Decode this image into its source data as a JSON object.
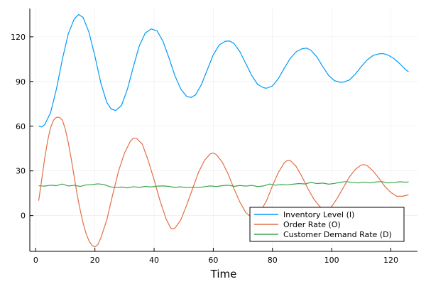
{
  "chart_data": {
    "type": "line",
    "title": "",
    "xlabel": "Time",
    "ylabel": "",
    "xlim": [
      -2,
      129
    ],
    "ylim": [
      -24,
      139
    ],
    "xticks": [
      0,
      20,
      40,
      60,
      80,
      100,
      120
    ],
    "yticks": [
      0,
      30,
      60,
      90,
      120
    ],
    "grid": true,
    "legend_position": "bottom-right",
    "series": [
      {
        "name": "Inventory Level (I)",
        "color": "#009af9",
        "points": [
          [
            1,
            60
          ],
          [
            2,
            59.5
          ],
          [
            3,
            61
          ],
          [
            5,
            69
          ],
          [
            7,
            85
          ],
          [
            9,
            105
          ],
          [
            11,
            122
          ],
          [
            13,
            132
          ],
          [
            14.5,
            135
          ],
          [
            16,
            133
          ],
          [
            18,
            123
          ],
          [
            20,
            107
          ],
          [
            22,
            89
          ],
          [
            24,
            76
          ],
          [
            25.5,
            71.5
          ],
          [
            27,
            70.5
          ],
          [
            29,
            74
          ],
          [
            31,
            85
          ],
          [
            33,
            100
          ],
          [
            35,
            114
          ],
          [
            37,
            122.5
          ],
          [
            39,
            125.3
          ],
          [
            41,
            124
          ],
          [
            43,
            117
          ],
          [
            45,
            106
          ],
          [
            47,
            94
          ],
          [
            49,
            85
          ],
          [
            51,
            80
          ],
          [
            52.5,
            79.3
          ],
          [
            54,
            81
          ],
          [
            56,
            88
          ],
          [
            58,
            98
          ],
          [
            60,
            108
          ],
          [
            62,
            114.5
          ],
          [
            64,
            117
          ],
          [
            65.5,
            117.2
          ],
          [
            67,
            115.5
          ],
          [
            69,
            110
          ],
          [
            71,
            102
          ],
          [
            73,
            94
          ],
          [
            75,
            88
          ],
          [
            77,
            85.8
          ],
          [
            78,
            85.5
          ],
          [
            80,
            87
          ],
          [
            82,
            92
          ],
          [
            84,
            99
          ],
          [
            86,
            105.5
          ],
          [
            88,
            110
          ],
          [
            90,
            112
          ],
          [
            91.5,
            112.4
          ],
          [
            93,
            111
          ],
          [
            95,
            106.5
          ],
          [
            97,
            100
          ],
          [
            99,
            94
          ],
          [
            101,
            90.5
          ],
          [
            103,
            89.5
          ],
          [
            104,
            89.6
          ],
          [
            106,
            91
          ],
          [
            108,
            95
          ],
          [
            110,
            100
          ],
          [
            112,
            104.5
          ],
          [
            114,
            107.5
          ],
          [
            116,
            108.6
          ],
          [
            117.5,
            108.7
          ],
          [
            119,
            107.8
          ],
          [
            121,
            105.5
          ],
          [
            123,
            102
          ],
          [
            125,
            98
          ],
          [
            126,
            96.5
          ]
        ]
      },
      {
        "name": "Order Rate (O)",
        "color": "#e26f46",
        "points": [
          [
            1,
            10
          ],
          [
            2,
            24
          ],
          [
            3,
            38
          ],
          [
            4,
            50
          ],
          [
            5,
            59
          ],
          [
            6,
            64
          ],
          [
            7,
            66
          ],
          [
            8,
            66
          ],
          [
            9,
            64
          ],
          [
            10,
            58
          ],
          [
            11,
            49
          ],
          [
            12,
            38
          ],
          [
            13,
            26
          ],
          [
            14,
            14
          ],
          [
            15,
            4
          ],
          [
            16,
            -5
          ],
          [
            17,
            -12
          ],
          [
            18,
            -17
          ],
          [
            19,
            -20
          ],
          [
            20,
            -21
          ],
          [
            21,
            -19.5
          ],
          [
            22,
            -15
          ],
          [
            24,
            -3
          ],
          [
            26,
            14
          ],
          [
            28,
            30
          ],
          [
            30,
            42
          ],
          [
            32,
            50
          ],
          [
            33,
            52
          ],
          [
            34,
            52
          ],
          [
            36,
            48
          ],
          [
            38,
            37
          ],
          [
            40,
            24
          ],
          [
            42,
            10
          ],
          [
            44,
            -2
          ],
          [
            45.5,
            -8
          ],
          [
            46,
            -9
          ],
          [
            47,
            -8.5
          ],
          [
            49,
            -3
          ],
          [
            51,
            7
          ],
          [
            53,
            18
          ],
          [
            55,
            29
          ],
          [
            57,
            37
          ],
          [
            59,
            41.5
          ],
          [
            60,
            42
          ],
          [
            61,
            41
          ],
          [
            63,
            36
          ],
          [
            65,
            28
          ],
          [
            67,
            18
          ],
          [
            69,
            9
          ],
          [
            71,
            2
          ],
          [
            72.5,
            -0.5
          ],
          [
            73,
            -1
          ],
          [
            74,
            -0.5
          ],
          [
            76,
            3
          ],
          [
            78,
            10
          ],
          [
            80,
            20
          ],
          [
            82,
            29
          ],
          [
            84,
            35.5
          ],
          [
            85,
            37
          ],
          [
            86,
            37
          ],
          [
            88,
            33
          ],
          [
            90,
            26
          ],
          [
            92,
            18
          ],
          [
            94,
            11
          ],
          [
            96,
            6
          ],
          [
            97.5,
            4.5
          ],
          [
            98.5,
            4.3
          ],
          [
            100,
            6
          ],
          [
            102,
            12
          ],
          [
            104,
            19
          ],
          [
            106,
            26
          ],
          [
            108,
            31
          ],
          [
            110,
            34
          ],
          [
            111,
            34.2
          ],
          [
            112,
            33.5
          ],
          [
            114,
            30
          ],
          [
            116,
            25
          ],
          [
            118,
            19.5
          ],
          [
            120,
            15.5
          ],
          [
            122,
            13
          ],
          [
            124,
            13
          ],
          [
            126,
            14
          ]
        ]
      },
      {
        "name": "Customer Demand Rate (D)",
        "color": "#3da44d",
        "points": [
          [
            1,
            20
          ],
          [
            3,
            19.8
          ],
          [
            5,
            20.4
          ],
          [
            7,
            20.1
          ],
          [
            9,
            21.2
          ],
          [
            11,
            19.9
          ],
          [
            13,
            20.3
          ],
          [
            15,
            19.6
          ],
          [
            17,
            20.6
          ],
          [
            19,
            20.8
          ],
          [
            21,
            21.3
          ],
          [
            23,
            20.9
          ],
          [
            25,
            19.4
          ],
          [
            27,
            18.8
          ],
          [
            29,
            19.2
          ],
          [
            31,
            18.6
          ],
          [
            33,
            19.4
          ],
          [
            35,
            18.9
          ],
          [
            37,
            19.6
          ],
          [
            39,
            19.2
          ],
          [
            41,
            19.8
          ],
          [
            43,
            19.9
          ],
          [
            45,
            19.6
          ],
          [
            47,
            18.9
          ],
          [
            49,
            19.3
          ],
          [
            51,
            18.7
          ],
          [
            53,
            19.1
          ],
          [
            55,
            18.8
          ],
          [
            57,
            19.4
          ],
          [
            59,
            19.9
          ],
          [
            61,
            19.5
          ],
          [
            63,
            20.1
          ],
          [
            65,
            20.4
          ],
          [
            67,
            19.6
          ],
          [
            69,
            20.2
          ],
          [
            71,
            19.8
          ],
          [
            73,
            20.3
          ],
          [
            75,
            19.5
          ],
          [
            77,
            19.9
          ],
          [
            79,
            21.2
          ],
          [
            81,
            20.4
          ],
          [
            83,
            20.8
          ],
          [
            85,
            20.6
          ],
          [
            87,
            21.1
          ],
          [
            89,
            21.5
          ],
          [
            91,
            21.2
          ],
          [
            93,
            22.3
          ],
          [
            95,
            21.5
          ],
          [
            97,
            21.8
          ],
          [
            99,
            21.1
          ],
          [
            101,
            21.6
          ],
          [
            103,
            22.4
          ],
          [
            105,
            22.8
          ],
          [
            107,
            22.2
          ],
          [
            109,
            21.9
          ],
          [
            111,
            22.5
          ],
          [
            113,
            21.9
          ],
          [
            115,
            22.6
          ],
          [
            117,
            22.8
          ],
          [
            119,
            21.9
          ],
          [
            121,
            22.2
          ],
          [
            123,
            22.7
          ],
          [
            125,
            22.4
          ],
          [
            126,
            22.6
          ]
        ]
      }
    ]
  }
}
